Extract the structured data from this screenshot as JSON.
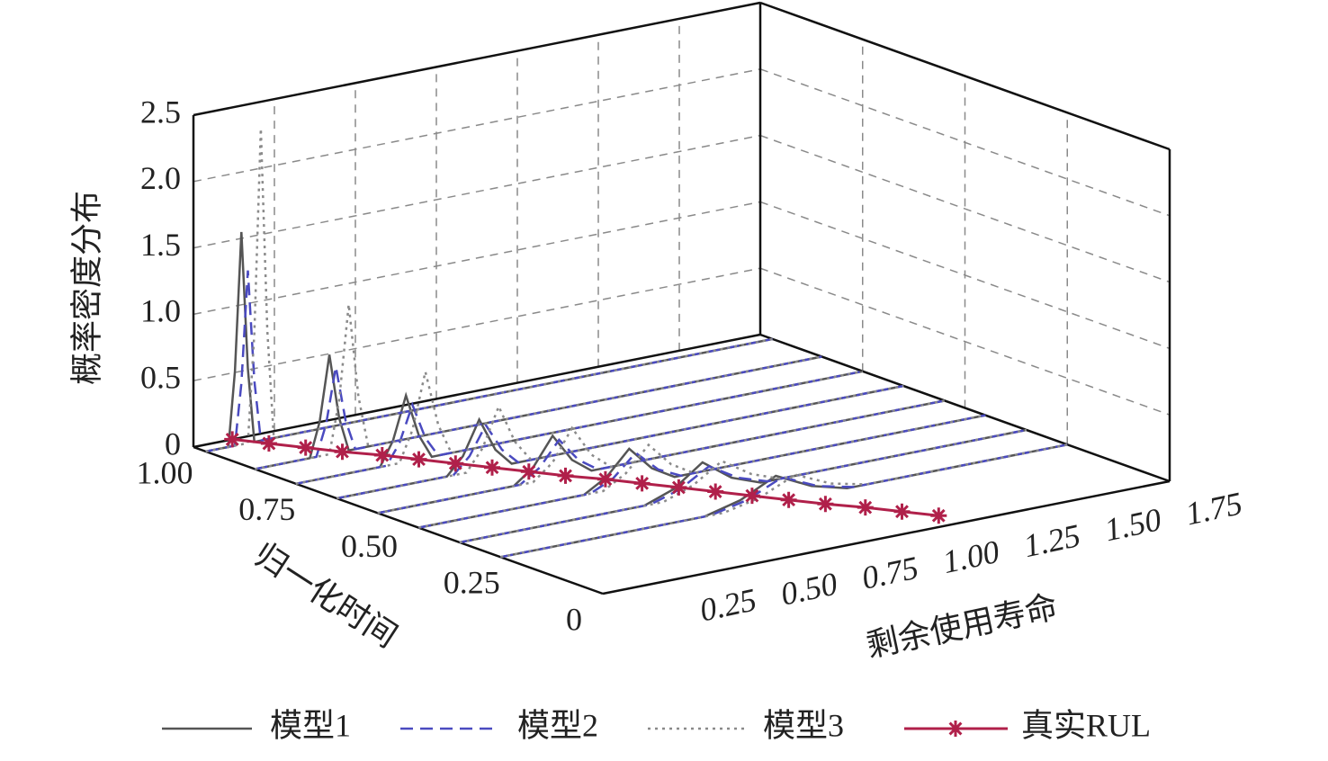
{
  "chart_data": {
    "type": "waterfall3d",
    "density_label": "概率密度分布",
    "time_label": "归一化时间",
    "rul_label": "剩余使用寿命",
    "tlim": [
      0,
      1
    ],
    "tticks": [
      {
        "value": 1,
        "label": "1.00"
      },
      0.75,
      {
        "value": 0.5,
        "label": "0.50"
      },
      0.25,
      0
    ],
    "rlim": [
      0,
      1.75
    ],
    "rticks": [
      0.25,
      {
        "value": 0.5,
        "label": "0.50"
      },
      0.75,
      {
        "value": 1,
        "label": "1.00"
      },
      1.25,
      {
        "value": 1.5,
        "label": "1.50"
      },
      1.75
    ],
    "zlim": [
      0,
      2.5
    ],
    "zticks": [
      0,
      0.5,
      {
        "value": 1,
        "label": "1.0"
      },
      1.5,
      {
        "value": 2,
        "label": "2.0"
      },
      2.5
    ],
    "grid": true,
    "legend": "bottom",
    "series": [
      {
        "name": "模型1",
        "color": "#555555",
        "linestyle": "solid",
        "curves": [
          {
            "t": 0.97,
            "rul": [
              0,
              0.07,
              0.09,
              0.11,
              0.13,
              0.15,
              1.75
            ],
            "density": [
              0,
              0,
              0.56,
              1.6,
              0.56,
              0,
              0
            ]
          },
          {
            "t": 0.85,
            "rul": [
              0,
              0.17,
              0.2,
              0.23,
              0.26,
              0.29,
              1.75
            ],
            "density": [
              0,
              0,
              0.26,
              0.75,
              0.26,
              0,
              0
            ]
          },
          {
            "t": 0.75,
            "rul": [
              0,
              0.26,
              0.3,
              0.34,
              0.38,
              0.42,
              1.75
            ],
            "density": [
              0,
              0,
              0.18,
              0.5,
              0.18,
              0,
              0
            ]
          },
          {
            "t": 0.65,
            "rul": [
              0,
              0.34,
              0.39,
              0.44,
              0.49,
              0.54,
              1.75
            ],
            "density": [
              0,
              0,
              0.13,
              0.38,
              0.13,
              0,
              0
            ]
          },
          {
            "t": 0.55,
            "rul": [
              0,
              0.42,
              0.48,
              0.54,
              0.6,
              0.66,
              1.75
            ],
            "density": [
              0,
              0,
              0.11,
              0.32,
              0.11,
              0,
              0
            ]
          },
          {
            "t": 0.45,
            "rul": [
              0,
              0.51,
              0.58,
              0.65,
              0.72,
              0.79,
              1.75
            ],
            "density": [
              0,
              0,
              0.1,
              0.28,
              0.1,
              0,
              0
            ]
          },
          {
            "t": 0.35,
            "rul": [
              0,
              0.57,
              0.66,
              0.75,
              0.84,
              0.93,
              1.75
            ],
            "density": [
              0,
              0,
              0.08,
              0.24,
              0.08,
              0,
              0
            ]
          },
          {
            "t": 0.25,
            "rul": [
              0,
              0.63,
              0.74,
              0.85,
              0.96,
              1.07,
              1.75
            ],
            "density": [
              0,
              0,
              0.07,
              0.2,
              0.07,
              0,
              0
            ]
          }
        ]
      },
      {
        "name": "模型2",
        "color": "#4a4ac0",
        "linestyle": "dashed",
        "curves": [
          {
            "t": 0.97,
            "rul": [
              0,
              0.09,
              0.11,
              0.13,
              0.15,
              0.17,
              1.75
            ],
            "density": [
              0,
              0,
              0.46,
              1.3,
              0.46,
              0,
              0
            ]
          },
          {
            "t": 0.85,
            "rul": [
              0,
              0.19,
              0.22,
              0.25,
              0.28,
              0.31,
              1.75
            ],
            "density": [
              0,
              0,
              0.23,
              0.65,
              0.23,
              0,
              0
            ]
          },
          {
            "t": 0.75,
            "rul": [
              0,
              0.28,
              0.32,
              0.36,
              0.4,
              0.44,
              1.75
            ],
            "density": [
              0,
              0,
              0.15,
              0.42,
              0.15,
              0,
              0
            ]
          },
          {
            "t": 0.65,
            "rul": [
              0,
              0.36,
              0.41,
              0.46,
              0.51,
              0.56,
              1.75
            ],
            "density": [
              0,
              0,
              0.12,
              0.33,
              0.12,
              0,
              0
            ]
          },
          {
            "t": 0.55,
            "rul": [
              0,
              0.44,
              0.5,
              0.56,
              0.62,
              0.68,
              1.75
            ],
            "density": [
              0,
              0,
              0.1,
              0.28,
              0.1,
              0,
              0
            ]
          },
          {
            "t": 0.45,
            "rul": [
              0,
              0.53,
              0.6,
              0.67,
              0.74,
              0.81,
              1.75
            ],
            "density": [
              0,
              0,
              0.08,
              0.24,
              0.08,
              0,
              0
            ]
          },
          {
            "t": 0.35,
            "rul": [
              0,
              0.59,
              0.68,
              0.77,
              0.86,
              0.95,
              1.75
            ],
            "density": [
              0,
              0,
              0.07,
              0.2,
              0.07,
              0,
              0
            ]
          },
          {
            "t": 0.25,
            "rul": [
              0,
              0.65,
              0.76,
              0.87,
              0.98,
              1.09,
              1.75
            ],
            "density": [
              0,
              0,
              0.06,
              0.18,
              0.06,
              0,
              0
            ]
          }
        ]
      },
      {
        "name": "模型3",
        "color": "#8a8a8a",
        "linestyle": "dotted",
        "curves": [
          {
            "t": 0.97,
            "rul": [
              0,
              0.13,
              0.15,
              0.17,
              0.19,
              0.21,
              1.75
            ],
            "density": [
              0,
              0,
              0.82,
              2.35,
              0.82,
              0,
              0
            ]
          },
          {
            "t": 0.85,
            "rul": [
              0,
              0.23,
              0.26,
              0.29,
              0.32,
              0.35,
              1.75
            ],
            "density": [
              0,
              0,
              0.39,
              1.1,
              0.39,
              0,
              0
            ]
          },
          {
            "t": 0.75,
            "rul": [
              0,
              0.32,
              0.36,
              0.4,
              0.44,
              0.48,
              1.75
            ],
            "density": [
              0,
              0,
              0.23,
              0.65,
              0.23,
              0,
              0
            ]
          },
          {
            "t": 0.65,
            "rul": [
              0,
              0.4,
              0.45,
              0.5,
              0.55,
              0.6,
              1.75
            ],
            "density": [
              0,
              0,
              0.16,
              0.45,
              0.16,
              0,
              0
            ]
          },
          {
            "t": 0.55,
            "rul": [
              0,
              0.48,
              0.54,
              0.6,
              0.66,
              0.72,
              1.75
            ],
            "density": [
              0,
              0,
              0.12,
              0.35,
              0.12,
              0,
              0
            ]
          },
          {
            "t": 0.45,
            "rul": [
              0,
              0.57,
              0.64,
              0.71,
              0.78,
              0.85,
              1.75
            ],
            "density": [
              0,
              0,
              0.1,
              0.28,
              0.1,
              0,
              0
            ]
          },
          {
            "t": 0.35,
            "rul": [
              0,
              0.63,
              0.72,
              0.81,
              0.9,
              0.99,
              1.75
            ],
            "density": [
              0,
              0,
              0.08,
              0.22,
              0.08,
              0,
              0
            ]
          },
          {
            "t": 0.25,
            "rul": [
              0,
              0.69,
              0.8,
              0.91,
              1.02,
              1.13,
              1.75
            ],
            "density": [
              0,
              0,
              0.06,
              0.18,
              0.06,
              0,
              0
            ]
          }
        ]
      }
    ],
    "true_rul": {
      "name": "真实RUL",
      "color": "#b0204a",
      "t": [
        1,
        0.95,
        0.9,
        0.85,
        0.8,
        0.75,
        0.7,
        0.65,
        0.6,
        0.55,
        0.5,
        0.45,
        0.4,
        0.35,
        0.3,
        0.25,
        0.2,
        0.15,
        0.1,
        0.05
      ],
      "values": [
        0.12,
        0.17,
        0.22,
        0.27,
        0.33,
        0.38,
        0.43,
        0.48,
        0.53,
        0.58,
        0.64,
        0.69,
        0.74,
        0.79,
        0.84,
        0.89,
        0.94,
        1.0,
        1.05,
        1.1
      ]
    }
  }
}
